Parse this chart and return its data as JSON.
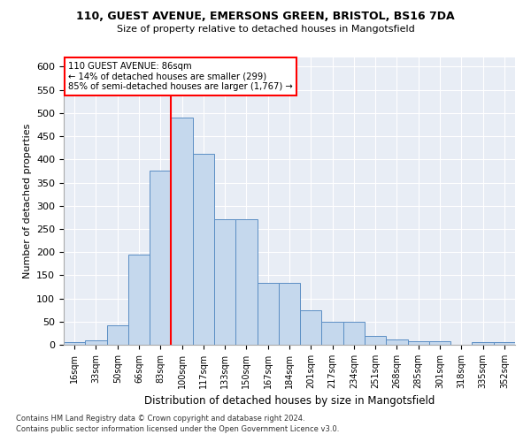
{
  "title_line1": "110, GUEST AVENUE, EMERSONS GREEN, BRISTOL, BS16 7DA",
  "title_line2": "Size of property relative to detached houses in Mangotsfield",
  "xlabel": "Distribution of detached houses by size in Mangotsfield",
  "ylabel": "Number of detached properties",
  "bar_color": "#c5d8ed",
  "bar_edge_color": "#5b8ec4",
  "background_color": "#e8edf5",
  "grid_color": "#ffffff",
  "categories": [
    "16sqm",
    "33sqm",
    "50sqm",
    "66sqm",
    "83sqm",
    "100sqm",
    "117sqm",
    "133sqm",
    "150sqm",
    "167sqm",
    "184sqm",
    "201sqm",
    "217sqm",
    "234sqm",
    "251sqm",
    "268sqm",
    "285sqm",
    "301sqm",
    "318sqm",
    "335sqm",
    "352sqm"
  ],
  "values": [
    5,
    10,
    42,
    195,
    375,
    490,
    412,
    270,
    270,
    133,
    133,
    75,
    50,
    50,
    20,
    12,
    8,
    8,
    0,
    6,
    5
  ],
  "pct_smaller": 14,
  "n_smaller": 299,
  "pct_larger_semi": 85,
  "n_larger_semi": 1767,
  "vline_x_index": 4.5,
  "ylim": [
    0,
    620
  ],
  "yticks": [
    0,
    50,
    100,
    150,
    200,
    250,
    300,
    350,
    400,
    450,
    500,
    550,
    600
  ],
  "footnote1": "Contains HM Land Registry data © Crown copyright and database right 2024.",
  "footnote2": "Contains public sector information licensed under the Open Government Licence v3.0."
}
